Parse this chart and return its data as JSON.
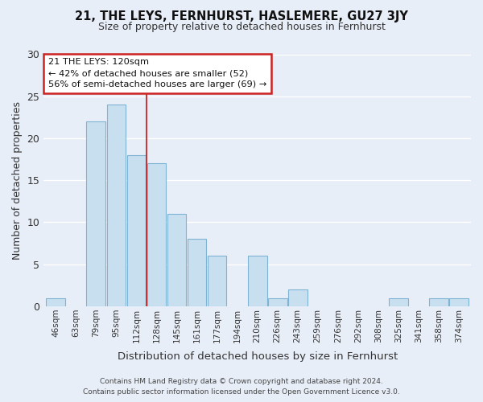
{
  "title": "21, THE LEYS, FERNHURST, HASLEMERE, GU27 3JY",
  "subtitle": "Size of property relative to detached houses in Fernhurst",
  "xlabel": "Distribution of detached houses by size in Fernhurst",
  "ylabel": "Number of detached properties",
  "footer_line1": "Contains HM Land Registry data © Crown copyright and database right 2024.",
  "footer_line2": "Contains public sector information licensed under the Open Government Licence v3.0.",
  "bin_labels": [
    "46sqm",
    "63sqm",
    "79sqm",
    "95sqm",
    "112sqm",
    "128sqm",
    "145sqm",
    "161sqm",
    "177sqm",
    "194sqm",
    "210sqm",
    "226sqm",
    "243sqm",
    "259sqm",
    "276sqm",
    "292sqm",
    "308sqm",
    "325sqm",
    "341sqm",
    "358sqm",
    "374sqm"
  ],
  "bar_heights": [
    1,
    0,
    22,
    24,
    18,
    17,
    11,
    8,
    6,
    0,
    6,
    1,
    2,
    0,
    0,
    0,
    0,
    1,
    0,
    1,
    1
  ],
  "bar_color": "#c8dff0",
  "bar_edge_color": "#7fb3d3",
  "annotation_line1": "21 THE LEYS: 120sqm",
  "annotation_line2": "← 42% of detached houses are smaller (52)",
  "annotation_line3": "56% of semi-detached houses are larger (69) →",
  "annotation_box_color": "#ffffff",
  "annotation_box_edge_color": "#cc2222",
  "vline_x_index": 4.5,
  "vline_color": "#cc2222",
  "ylim": [
    0,
    30
  ],
  "yticks": [
    0,
    5,
    10,
    15,
    20,
    25,
    30
  ],
  "background_color": "#e8eef8",
  "grid_color": "#ffffff",
  "figsize": [
    6.0,
    5.0
  ],
  "dpi": 100
}
